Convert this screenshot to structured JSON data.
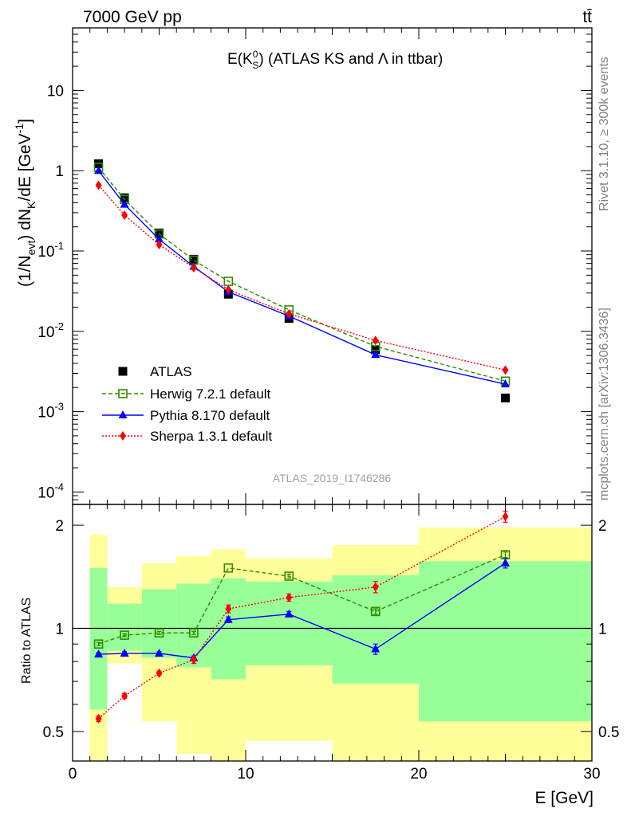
{
  "header": {
    "left": "7000 GeV pp",
    "right": "tt̄"
  },
  "side_text": {
    "upper": "Rivet 3.1.10, ≥ 300k events",
    "lower": "mcplots.cern.ch [arXiv:1306.3436]"
  },
  "chart_data": [
    {
      "type": "line",
      "panel": "main",
      "title_parts": {
        "prefix": "E(K",
        "sup": "0",
        "sub": "S",
        "suffix": ") (ATLAS KS and Λ in ttbar)"
      },
      "ylabel": "(1/N_evt) dN_K/dE [GeV^-1]",
      "ylabel_parts": [
        "(1/N",
        "evt",
        ") dN",
        "K",
        "/dE [GeV",
        "-1",
        "]"
      ],
      "yscale": "log",
      "ylim": [
        7e-05,
        60
      ],
      "xlim": [
        0,
        30
      ],
      "yticks": [
        {
          "value": 0.0001,
          "base": "10",
          "exp": "-4"
        },
        {
          "value": 0.001,
          "base": "10",
          "exp": "-3"
        },
        {
          "value": 0.01,
          "base": "10",
          "exp": "-2"
        },
        {
          "value": 0.1,
          "base": "10",
          "exp": "-1"
        },
        {
          "value": 1,
          "base": "1",
          "exp": ""
        },
        {
          "value": 10,
          "base": "10",
          "exp": ""
        }
      ],
      "watermark": "ATLAS_2019_I1746286",
      "series": [
        {
          "name": "ATLAS",
          "color": "#000000",
          "marker": "square-filled",
          "line": "none",
          "x": [
            1.5,
            3,
            5,
            7,
            9,
            12.5,
            17.5,
            25
          ],
          "y": [
            1.22,
            0.46,
            0.168,
            0.079,
            0.029,
            0.0145,
            0.0059,
            0.00148
          ]
        },
        {
          "name": "Herwig 7.2.1 default",
          "color": "#2e8b00",
          "marker": "square-open",
          "line": "dashed",
          "x": [
            1.5,
            3,
            5,
            7,
            9,
            12.5,
            17.5,
            25
          ],
          "y": [
            1.1,
            0.44,
            0.163,
            0.077,
            0.042,
            0.0185,
            0.0065,
            0.0024
          ]
        },
        {
          "name": "Pythia 8.170 default",
          "color": "#0000ff",
          "marker": "triangle-filled",
          "line": "solid",
          "x": [
            1.5,
            3,
            5,
            7,
            9,
            12.5,
            17.5,
            25
          ],
          "y": [
            1.0,
            0.38,
            0.14,
            0.064,
            0.031,
            0.0155,
            0.0051,
            0.0022
          ]
        },
        {
          "name": "Sherpa 1.3.1 default",
          "color": "#ff0000",
          "marker": "diamond-filled",
          "line": "dotted",
          "x": [
            1.5,
            3,
            5,
            7,
            9,
            12.5,
            17.5,
            25
          ],
          "y": [
            0.66,
            0.28,
            0.12,
            0.062,
            0.033,
            0.0165,
            0.0077,
            0.0033
          ]
        }
      ]
    },
    {
      "type": "line",
      "panel": "ratio",
      "ylabel": "Ratio to ATLAS",
      "xlabel": "E [GeV]",
      "yscale": "log",
      "ylim": [
        0.41,
        2.3
      ],
      "xlim": [
        0,
        30
      ],
      "xticks": [
        0,
        10,
        20,
        30
      ],
      "yticks": [
        0.5,
        1,
        2
      ],
      "reference_line": 1,
      "bands": {
        "yellow_color": "#ffff99",
        "green_color": "#99ff99",
        "bins": [
          {
            "x0": 1,
            "x1": 2,
            "yellow": [
              0.41,
              1.88
            ],
            "green": [
              0.58,
              1.5
            ]
          },
          {
            "x0": 2,
            "x1": 4,
            "yellow": [
              0.79,
              1.32
            ],
            "green": [
              0.86,
              1.18
            ]
          },
          {
            "x0": 4,
            "x1": 6,
            "yellow": [
              0.535,
              1.55
            ],
            "green": [
              0.82,
              1.3
            ]
          },
          {
            "x0": 6,
            "x1": 8,
            "yellow": [
              0.43,
              1.63
            ],
            "green": [
              0.77,
              1.35
            ]
          },
          {
            "x0": 8,
            "x1": 10,
            "yellow": [
              0.41,
              1.7
            ],
            "green": [
              0.71,
              1.4
            ]
          },
          {
            "x0": 10,
            "x1": 15,
            "yellow": [
              0.47,
              1.6
            ],
            "green": [
              0.78,
              1.37
            ]
          },
          {
            "x0": 15,
            "x1": 20,
            "yellow": [
              0.41,
              1.75
            ],
            "green": [
              0.69,
              1.43
            ]
          },
          {
            "x0": 20,
            "x1": 30,
            "yellow": [
              0.41,
              1.97
            ],
            "green": [
              0.535,
              1.57
            ]
          }
        ]
      },
      "series": [
        {
          "name": "Herwig 7.2.1 default",
          "color": "#2e8b00",
          "x": [
            1.5,
            3,
            5,
            7,
            9,
            12.5,
            17.5,
            25
          ],
          "y": [
            0.9,
            0.955,
            0.97,
            0.97,
            1.5,
            1.42,
            1.12,
            1.64
          ],
          "err": [
            0.01,
            0.01,
            0.01,
            0.01,
            0.01,
            0.02,
            0.02,
            0.03
          ]
        },
        {
          "name": "Pythia 8.170 default",
          "color": "#0000ff",
          "x": [
            1.5,
            3,
            5,
            7,
            9,
            12.5,
            17.5,
            25
          ],
          "y": [
            0.84,
            0.845,
            0.845,
            0.82,
            1.06,
            1.1,
            0.87,
            1.55
          ],
          "err": [
            0.01,
            0.01,
            0.01,
            0.01,
            0.02,
            0.02,
            0.03,
            0.05
          ]
        },
        {
          "name": "Sherpa 1.3.1 default",
          "color": "#ff0000",
          "x": [
            1.5,
            3,
            5,
            7,
            9,
            12.5,
            17.5,
            25
          ],
          "y": [
            0.545,
            0.635,
            0.74,
            0.81,
            1.14,
            1.23,
            1.32,
            2.12
          ],
          "err": [
            0.01,
            0.01,
            0.01,
            0.02,
            0.03,
            0.03,
            0.05,
            0.08
          ]
        }
      ]
    }
  ]
}
